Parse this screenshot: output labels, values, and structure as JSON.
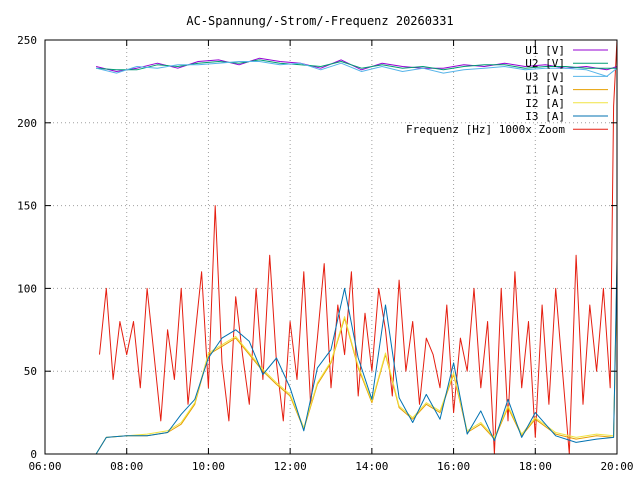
{
  "chart_data": {
    "type": "line",
    "title": "AC-Spannung/-Strom/-Frequenz 20260331",
    "xlabel": "",
    "ylabel": "",
    "xlim": [
      "06:00",
      "20:00"
    ],
    "ylim": [
      0,
      250
    ],
    "x_ticks": [
      "06:00",
      "08:00",
      "10:00",
      "12:00",
      "14:00",
      "16:00",
      "18:00",
      "20:00"
    ],
    "y_ticks": [
      0,
      50,
      100,
      150,
      200,
      250
    ],
    "grid": true,
    "legend_position": "top-right",
    "series": [
      {
        "name": "U1 [V]",
        "color": "#9400d3",
        "x": [
          "07:15",
          "07:45",
          "08:15",
          "08:45",
          "09:15",
          "09:45",
          "10:15",
          "10:45",
          "11:15",
          "11:45",
          "12:15",
          "12:45",
          "13:15",
          "13:45",
          "14:15",
          "14:45",
          "15:15",
          "15:45",
          "16:15",
          "16:45",
          "17:15",
          "17:45",
          "18:15",
          "18:45",
          "19:15",
          "19:45",
          "20:00"
        ],
        "values": [
          234,
          231,
          233,
          236,
          233,
          237,
          238,
          235,
          239,
          237,
          236,
          233,
          238,
          232,
          236,
          234,
          233,
          233,
          235,
          234,
          236,
          234,
          235,
          233,
          234,
          232,
          234
        ]
      },
      {
        "name": "U2 [V]",
        "color": "#009e73",
        "x": [
          "07:15",
          "07:45",
          "08:15",
          "08:45",
          "09:15",
          "09:45",
          "10:15",
          "10:45",
          "11:15",
          "11:45",
          "12:15",
          "12:45",
          "13:15",
          "13:45",
          "14:15",
          "14:45",
          "15:15",
          "15:45",
          "16:15",
          "16:45",
          "17:15",
          "17:45",
          "18:15",
          "18:45",
          "19:15",
          "19:45",
          "20:00"
        ],
        "values": [
          233,
          232,
          232,
          235,
          234,
          236,
          237,
          236,
          238,
          236,
          235,
          234,
          237,
          233,
          235,
          233,
          234,
          232,
          234,
          235,
          235,
          233,
          234,
          234,
          233,
          233,
          233
        ]
      },
      {
        "name": "U3 [V]",
        "color": "#56b4e9",
        "x": [
          "07:15",
          "07:45",
          "08:15",
          "08:45",
          "09:15",
          "09:45",
          "10:15",
          "10:45",
          "11:15",
          "11:45",
          "12:15",
          "12:45",
          "13:15",
          "13:45",
          "14:15",
          "14:45",
          "15:15",
          "15:45",
          "16:15",
          "16:45",
          "17:15",
          "17:45",
          "18:15",
          "18:45",
          "19:15",
          "19:45",
          "20:00"
        ],
        "values": [
          233,
          230,
          234,
          233,
          235,
          235,
          236,
          237,
          237,
          235,
          236,
          232,
          236,
          231,
          234,
          231,
          233,
          230,
          232,
          233,
          234,
          232,
          233,
          233,
          232,
          228,
          233
        ]
      },
      {
        "name": "I1 [A]",
        "color": "#e69f00",
        "x": [
          "07:15",
          "07:30",
          "08:00",
          "08:30",
          "09:00",
          "09:20",
          "09:40",
          "10:00",
          "10:20",
          "10:40",
          "11:00",
          "11:20",
          "11:40",
          "12:00",
          "12:20",
          "12:40",
          "13:00",
          "13:20",
          "13:40",
          "14:00",
          "14:20",
          "14:40",
          "15:00",
          "15:20",
          "15:40",
          "16:00",
          "16:20",
          "16:40",
          "17:00",
          "17:20",
          "17:40",
          "18:00",
          "18:30",
          "19:00",
          "19:30",
          "19:55",
          "20:00"
        ],
        "values": [
          0,
          10,
          11,
          11,
          13,
          18,
          30,
          60,
          65,
          70,
          60,
          50,
          42,
          35,
          15,
          42,
          55,
          82,
          52,
          31,
          60,
          28,
          21,
          30,
          25,
          48,
          13,
          18,
          9,
          28,
          11,
          21,
          12,
          9,
          11,
          10,
          110
        ]
      },
      {
        "name": "I2 [A]",
        "color": "#f0e442",
        "x": [
          "07:15",
          "07:30",
          "08:00",
          "08:30",
          "09:00",
          "09:20",
          "09:40",
          "10:00",
          "10:20",
          "10:40",
          "11:00",
          "11:20",
          "11:40",
          "12:00",
          "12:20",
          "12:40",
          "13:00",
          "13:20",
          "13:40",
          "14:00",
          "14:20",
          "14:40",
          "15:00",
          "15:20",
          "15:40",
          "16:00",
          "16:20",
          "16:40",
          "17:00",
          "17:20",
          "17:40",
          "18:00",
          "18:30",
          "19:00",
          "19:30",
          "19:55",
          "20:00"
        ],
        "values": [
          0,
          10,
          11,
          12,
          14,
          19,
          31,
          61,
          66,
          71,
          61,
          51,
          43,
          36,
          16,
          43,
          56,
          83,
          53,
          32,
          61,
          29,
          22,
          31,
          26,
          49,
          14,
          19,
          10,
          29,
          12,
          22,
          13,
          10,
          12,
          11,
          112
        ]
      },
      {
        "name": "I3 [A]",
        "color": "#0072b2",
        "x": [
          "07:15",
          "07:30",
          "08:00",
          "08:30",
          "09:00",
          "09:20",
          "09:40",
          "10:00",
          "10:20",
          "10:40",
          "11:00",
          "11:20",
          "11:40",
          "12:00",
          "12:20",
          "12:40",
          "13:00",
          "13:20",
          "13:40",
          "14:00",
          "14:20",
          "14:40",
          "15:00",
          "15:20",
          "15:40",
          "16:00",
          "16:20",
          "16:40",
          "17:00",
          "17:20",
          "17:40",
          "18:00",
          "18:30",
          "19:00",
          "19:30",
          "19:55",
          "20:00"
        ],
        "values": [
          0,
          10,
          11,
          11,
          13,
          24,
          33,
          58,
          70,
          75,
          68,
          48,
          58,
          40,
          14,
          52,
          63,
          100,
          58,
          33,
          90,
          34,
          19,
          36,
          21,
          55,
          12,
          26,
          8,
          33,
          10,
          25,
          11,
          7,
          9,
          10,
          118
        ]
      },
      {
        "name": "Frequenz [Hz] 1000x Zoom",
        "color": "#e51e10",
        "x": [
          "07:20",
          "07:30",
          "07:40",
          "07:50",
          "08:00",
          "08:10",
          "08:20",
          "08:30",
          "08:40",
          "08:50",
          "09:00",
          "09:10",
          "09:20",
          "09:30",
          "09:40",
          "09:50",
          "10:00",
          "10:10",
          "10:20",
          "10:30",
          "10:40",
          "10:50",
          "11:00",
          "11:10",
          "11:20",
          "11:30",
          "11:40",
          "11:50",
          "12:00",
          "12:10",
          "12:20",
          "12:30",
          "12:40",
          "12:50",
          "13:00",
          "13:10",
          "13:20",
          "13:30",
          "13:40",
          "13:50",
          "14:00",
          "14:10",
          "14:20",
          "14:30",
          "14:40",
          "14:50",
          "15:00",
          "15:10",
          "15:20",
          "15:30",
          "15:40",
          "15:50",
          "16:00",
          "16:10",
          "16:20",
          "16:30",
          "16:40",
          "16:50",
          "17:00",
          "17:10",
          "17:20",
          "17:30",
          "17:40",
          "17:50",
          "18:00",
          "18:10",
          "18:20",
          "18:30",
          "18:40",
          "18:50",
          "19:00",
          "19:10",
          "19:20",
          "19:30",
          "19:40",
          "19:50",
          "19:55",
          "20:00"
        ],
        "values": [
          60,
          100,
          45,
          80,
          60,
          80,
          40,
          100,
          60,
          20,
          75,
          45,
          100,
          30,
          70,
          110,
          40,
          150,
          55,
          20,
          95,
          60,
          30,
          100,
          45,
          120,
          55,
          20,
          80,
          45,
          110,
          30,
          70,
          115,
          40,
          90,
          60,
          110,
          35,
          85,
          50,
          100,
          75,
          35,
          105,
          50,
          80,
          30,
          70,
          60,
          40,
          90,
          25,
          70,
          50,
          100,
          40,
          80,
          0,
          100,
          20,
          110,
          40,
          80,
          10,
          90,
          30,
          100,
          50,
          0,
          120,
          30,
          90,
          50,
          100,
          40,
          210,
          250
        ]
      }
    ]
  }
}
